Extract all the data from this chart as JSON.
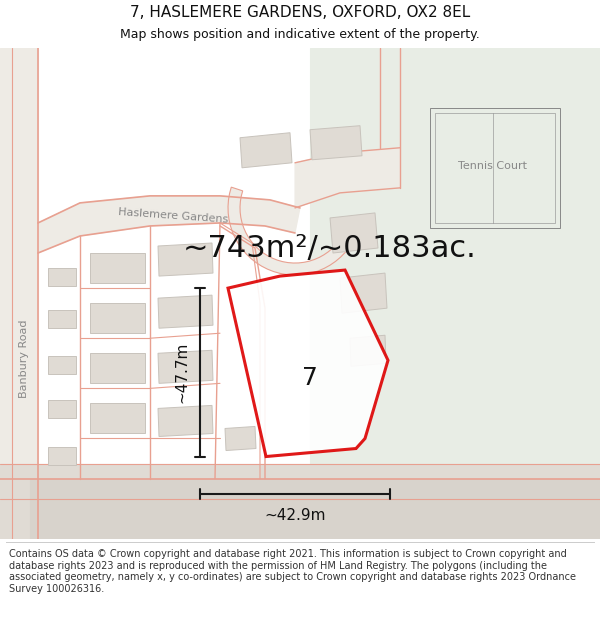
{
  "title": "7, HASLEMERE GARDENS, OXFORD, OX2 8EL",
  "subtitle": "Map shows position and indicative extent of the property.",
  "footer": "Contains OS data © Crown copyright and database right 2021. This information is subject to Crown copyright and database rights 2023 and is reproduced with the permission of HM Land Registry. The polygons (including the associated geometry, namely x, y co-ordinates) are subject to Crown copyright and database rights 2023 Ordnance Survey 100026316.",
  "area_label": "~743m²/~0.183ac.",
  "property_number": "7",
  "dim_height": "~47.7m",
  "dim_width": "~42.9m",
  "map_bg": "#f7f5f2",
  "green_color": "#e8ede5",
  "road_fill": "#eeebe5",
  "building_fill": "#e0dbd4",
  "building_outline": "#c8c3bc",
  "street_line_color": "#e8a090",
  "property_edge_color": "#dd0000",
  "dim_line_color": "#1a1a1a",
  "text_color": "#111111",
  "label_color": "#888888",
  "tennis_label_color": "#888888",
  "title_fontsize": 11,
  "subtitle_fontsize": 9,
  "area_fontsize": 22,
  "number_fontsize": 18,
  "dim_fontsize": 11,
  "footer_fontsize": 7.0,
  "road_label_fontsize": 8
}
